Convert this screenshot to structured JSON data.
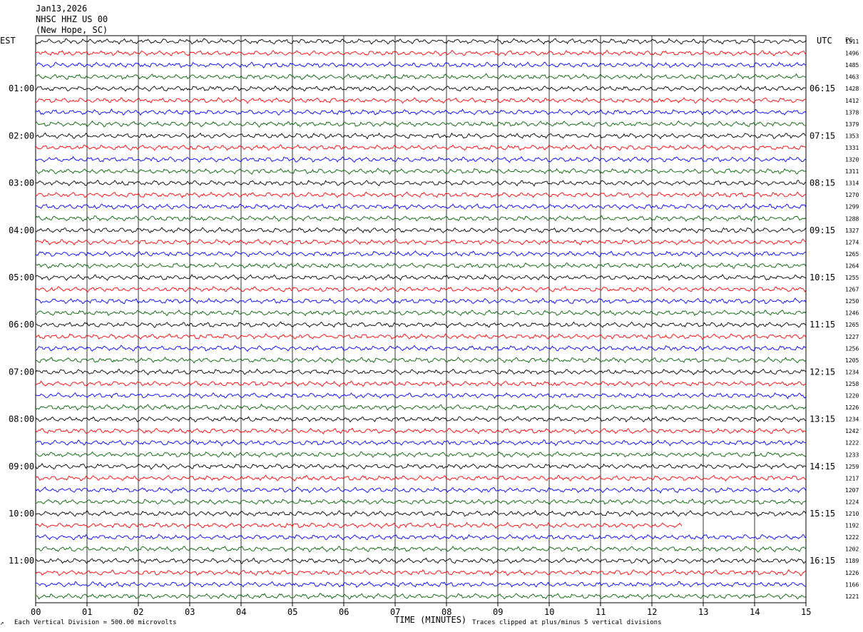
{
  "header": {
    "date": "Jan13,2026",
    "station": "NHSC HHZ US 00",
    "location": "(New Hope, SC)"
  },
  "left_axis_label": "EST",
  "right_axis_label": "UTC",
  "rms_header": "PG",
  "footer": {
    "scale_note": "Each Vertical Division =  500.00 microvolts",
    "xlabel": "TIME (MINUTES)",
    "clip_note": "Traces clipped at plus/minus 5 vertical divisions"
  },
  "chart_data": {
    "type": "line",
    "title": "NHSC HHZ US 00",
    "xlabel": "TIME (MINUTES)",
    "xlim": [
      0,
      15
    ],
    "x_ticks": [
      "00",
      "01",
      "02",
      "03",
      "04",
      "05",
      "06",
      "07",
      "08",
      "09",
      "10",
      "11",
      "12",
      "13",
      "14",
      "15"
    ],
    "trace_colors": [
      "#000000",
      "#ff0000",
      "#0000ff",
      "#006400"
    ],
    "left_labels": [
      "01:00",
      "02:00",
      "03:00",
      "04:00",
      "05:00",
      "06:00",
      "07:00",
      "08:00",
      "09:00",
      "10:00",
      "11:00"
    ],
    "right_labels": [
      "06:15",
      "07:15",
      "08:15",
      "09:15",
      "10:15",
      "11:15",
      "12:15",
      "13:15",
      "14:15",
      "15:15",
      "16:15"
    ],
    "trace_rms": [
      "1511",
      "1496",
      "1485",
      "1463",
      "1428",
      "1412",
      "1378",
      "1379",
      "1353",
      "1331",
      "1320",
      "1311",
      "1314",
      "1270",
      "1299",
      "1288",
      "1327",
      "1274",
      "1265",
      "1264",
      "1255",
      "1267",
      "1250",
      "1246",
      "1265",
      "1227",
      "1256",
      "1205",
      "1234",
      "1258",
      "1220",
      "1226",
      "1234",
      "1242",
      "1222",
      "1233",
      "1259",
      "1217",
      "1207",
      "1224",
      "1210",
      "1192",
      "1222",
      "1202",
      "1189",
      "1226",
      "1166",
      "1221"
    ]
  }
}
